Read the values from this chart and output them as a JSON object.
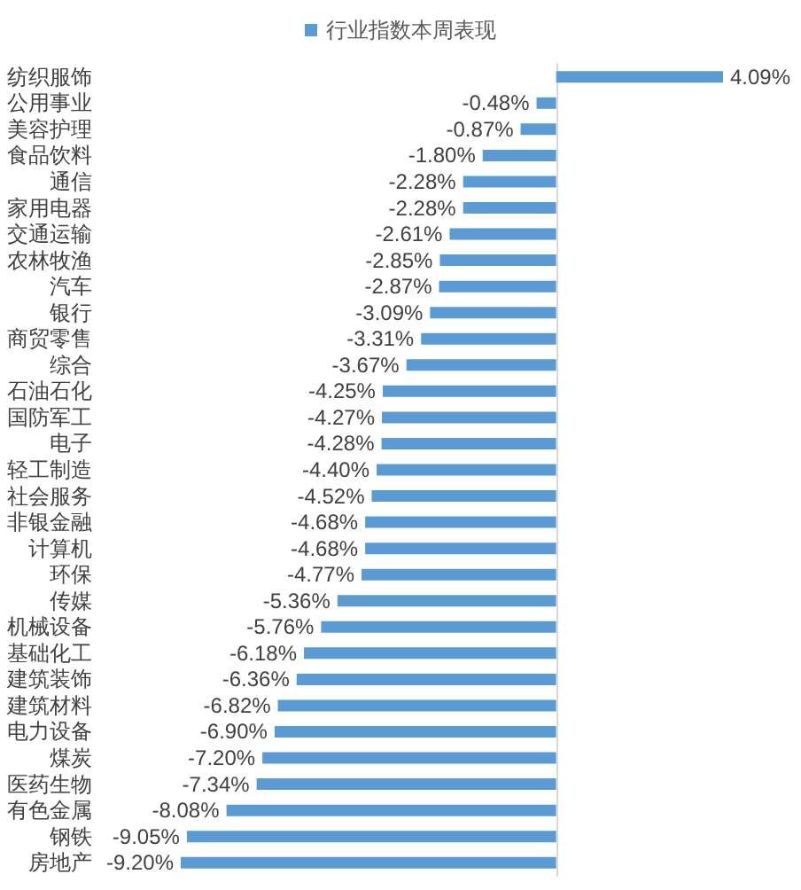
{
  "chart_data": {
    "type": "bar",
    "orientation": "horizontal",
    "legend": "top",
    "grid": false,
    "categories": [
      "纺织服饰",
      "公用事业",
      "美容护理",
      "食品饮料",
      "通信",
      "家用电器",
      "交通运输",
      "农林牧渔",
      "汽车",
      "银行",
      "商贸零售",
      "综合",
      "石油石化",
      "国防军工",
      "电子",
      "轻工制造",
      "社会服务",
      "非银金融",
      "计算机",
      "环保",
      "传媒",
      "机械设备",
      "基础化工",
      "建筑装饰",
      "建筑材料",
      "电力设备",
      "煤炭",
      "医药生物",
      "有色金属",
      "钢铁",
      "房地产"
    ],
    "series": [
      {
        "name": "行业指数本周表现",
        "color": "#5b9bd5",
        "values": [
          4.09,
          -0.48,
          -0.87,
          -1.8,
          -2.28,
          -2.28,
          -2.61,
          -2.85,
          -2.87,
          -3.09,
          -3.31,
          -3.67,
          -4.25,
          -4.27,
          -4.28,
          -4.4,
          -4.52,
          -4.68,
          -4.68,
          -4.77,
          -5.36,
          -5.76,
          -6.18,
          -6.36,
          -6.82,
          -6.9,
          -7.2,
          -7.34,
          -8.08,
          -9.05,
          -9.2
        ],
        "value_labels": [
          "4.09%",
          "-0.48%",
          "-0.87%",
          "-1.80%",
          "-2.28%",
          "-2.28%",
          "-2.61%",
          "-2.85%",
          "-2.87%",
          "-3.09%",
          "-3.31%",
          "-3.67%",
          "-4.25%",
          "-4.27%",
          "-4.28%",
          "-4.40%",
          "-4.52%",
          "-4.68%",
          "-4.68%",
          "-4.77%",
          "-5.36%",
          "-5.76%",
          "-6.18%",
          "-6.36%",
          "-6.82%",
          "-6.90%",
          "-7.20%",
          "-7.34%",
          "-8.08%",
          "-9.05%",
          "-9.20%"
        ]
      }
    ]
  }
}
